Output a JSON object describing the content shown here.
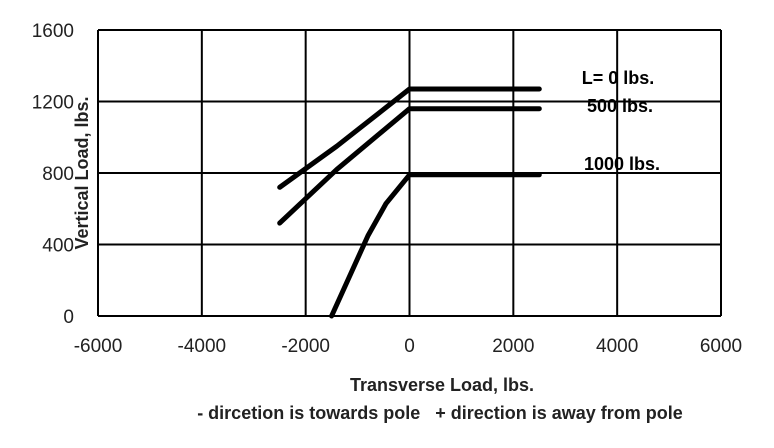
{
  "chart_data": {
    "type": "line",
    "xlabel": "Transverse Load, lbs.",
    "ylabel": "Vertical Load, lbs.",
    "note": "- dircetion is towards pole   + direction is away from pole",
    "xlim": [
      -6000,
      6000
    ],
    "ylim": [
      0,
      1600
    ],
    "x_ticks": [
      "-6000",
      "-4000",
      "-2000",
      "0",
      "2000",
      "4000",
      "6000"
    ],
    "y_ticks": [
      "0",
      "400",
      "800",
      "1200",
      "1600"
    ],
    "grid": true,
    "legend": "inline labels at right end of lines",
    "series": [
      {
        "name": "L=  0 lbs.",
        "points": [
          [
            -2500,
            720
          ],
          [
            -1400,
            950
          ],
          [
            0,
            1270
          ],
          [
            2500,
            1270
          ]
        ]
      },
      {
        "name": "500 lbs.",
        "points": [
          [
            -2500,
            520
          ],
          [
            -1400,
            820
          ],
          [
            0,
            1160
          ],
          [
            2500,
            1160
          ]
        ]
      },
      {
        "name": "1000 lbs.",
        "points": [
          [
            -1500,
            0
          ],
          [
            -800,
            450
          ],
          [
            -450,
            630
          ],
          [
            0,
            790
          ],
          [
            2500,
            790
          ]
        ]
      }
    ]
  }
}
